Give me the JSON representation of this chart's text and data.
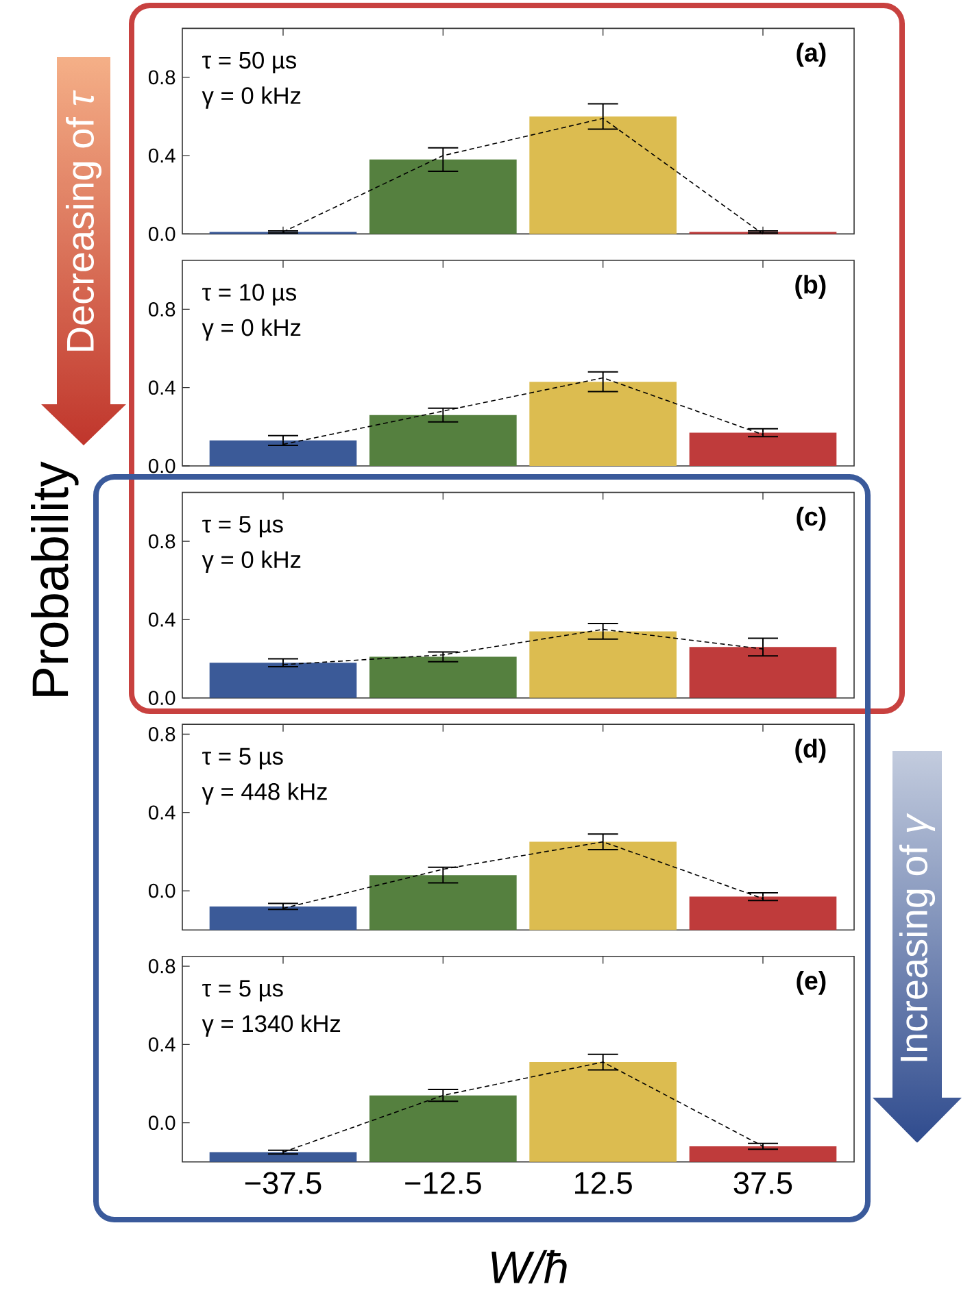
{
  "chart_data": [
    {
      "type": "bar",
      "title": "(a)",
      "annotations": [
        "τ = 50 µs",
        "γ = 0 kHz",
        "Decreasing of *τ*"
      ],
      "categories": [
        "−37.5",
        "−12.5",
        "12.5",
        "37.5"
      ],
      "ylim": [
        0,
        1.05
      ],
      "yticks": [
        {
          "value": 0,
          "label": "0.0"
        },
        {
          "value": 0.4,
          "label": "0.4"
        },
        {
          "value": 0.8,
          "label": "0.8"
        }
      ],
      "tick_labels": "y",
      "series": [
        {
          "colors": [
            "#3b5a98",
            "#55803f",
            "#dcbc50",
            "#bf3b3b"
          ],
          "values": [
            0.01,
            0.38,
            0.6,
            0.01
          ],
          "errors": [
            0.005,
            0.06,
            0.065,
            0.005
          ]
        },
        {
          "type": "line",
          "color": "#000000",
          "line_style": "dashed",
          "values": [
            0.01,
            0.4,
            0.59,
            0.0
          ]
        }
      ]
    },
    {
      "type": "bar",
      "title": "(b)",
      "annotations": [
        "τ = 10 µs",
        "γ = 0 kHz"
      ],
      "categories": [
        "−37.5",
        "−12.5",
        "12.5",
        "37.5"
      ],
      "ylim": [
        0,
        1.05
      ],
      "yticks": [
        {
          "value": 0,
          "label": "0.0"
        },
        {
          "value": 0.4,
          "label": "0.4"
        },
        {
          "value": 0.8,
          "label": "0.8"
        }
      ],
      "tick_labels": "y",
      "series": [
        {
          "colors": [
            "#3b5a98",
            "#55803f",
            "#dcbc50",
            "#bf3b3b"
          ],
          "values": [
            0.13,
            0.26,
            0.43,
            0.17
          ],
          "errors": [
            0.025,
            0.035,
            0.05,
            0.02
          ]
        },
        {
          "type": "line",
          "color": "#000000",
          "line_style": "dashed",
          "values": [
            0.11,
            0.28,
            0.45,
            0.16
          ]
        }
      ]
    },
    {
      "type": "bar",
      "title": "(c)",
      "ylabel": "Probability",
      "annotations": [
        "τ = 5 µs",
        "γ = 0 kHz"
      ],
      "categories": [
        "−37.5",
        "−12.5",
        "12.5",
        "37.5"
      ],
      "ylim": [
        0,
        1.05
      ],
      "yticks": [
        {
          "value": 0,
          "label": "0.0"
        },
        {
          "value": 0.4,
          "label": "0.4"
        },
        {
          "value": 0.8,
          "label": "0.8"
        }
      ],
      "tick_labels": "y",
      "series": [
        {
          "colors": [
            "#3b5a98",
            "#55803f",
            "#dcbc50",
            "#bf3b3b"
          ],
          "values": [
            0.18,
            0.21,
            0.34,
            0.26
          ],
          "errors": [
            0.02,
            0.025,
            0.04,
            0.045
          ]
        },
        {
          "type": "line",
          "color": "#000000",
          "line_style": "dashed",
          "values": [
            0.17,
            0.22,
            0.35,
            0.25
          ]
        }
      ]
    },
    {
      "type": "bar",
      "title": "(d)",
      "annotations": [
        "τ = 5 µs",
        "γ = 448 kHz"
      ],
      "categories": [
        "−37.5",
        "−12.5",
        "12.5",
        "37.5"
      ],
      "ylim": [
        -0.2,
        0.85
      ],
      "yticks": [
        {
          "value": 0,
          "label": "0.0"
        },
        {
          "value": 0.4,
          "label": "0.4"
        },
        {
          "value": 0.8,
          "label": "0.8"
        }
      ],
      "tick_labels": "y",
      "series": [
        {
          "colors": [
            "#3b5a98",
            "#55803f",
            "#dcbc50",
            "#bf3b3b"
          ],
          "base": [
            -0.2,
            -0.2,
            -0.2,
            -0.2
          ],
          "values": [
            0.12,
            0.28,
            0.45,
            0.17
          ],
          "errors": [
            0.015,
            0.04,
            0.04,
            0.02
          ]
        },
        {
          "type": "line",
          "color": "#000000",
          "line_style": "dashed",
          "values": [
            -0.09,
            0.11,
            0.25,
            -0.04
          ]
        }
      ]
    },
    {
      "type": "bar",
      "title": "(e)",
      "xlabel": "W/ħ",
      "annotations": [
        "τ = 5 µs",
        "γ = 1340 kHz",
        "Increasing of *γ*"
      ],
      "categories": [
        "−37.5",
        "−12.5",
        "12.5",
        "37.5"
      ],
      "ylim": [
        -0.2,
        0.85
      ],
      "yticks": [
        {
          "value": 0,
          "label": "0.0"
        },
        {
          "value": 0.4,
          "label": "0.4"
        },
        {
          "value": 0.8,
          "label": "0.8"
        }
      ],
      "series": [
        {
          "colors": [
            "#3b5a98",
            "#55803f",
            "#dcbc50",
            "#bf3b3b"
          ],
          "base": [
            -0.2,
            -0.2,
            -0.2,
            -0.2
          ],
          "values": [
            0.05,
            0.34,
            0.51,
            0.08
          ],
          "errors": [
            0.01,
            0.03,
            0.04,
            0.015
          ]
        },
        {
          "type": "line",
          "color": "#000000",
          "line_style": "dashed",
          "values": [
            -0.15,
            0.14,
            0.31,
            -0.12
          ]
        }
      ]
    }
  ]
}
